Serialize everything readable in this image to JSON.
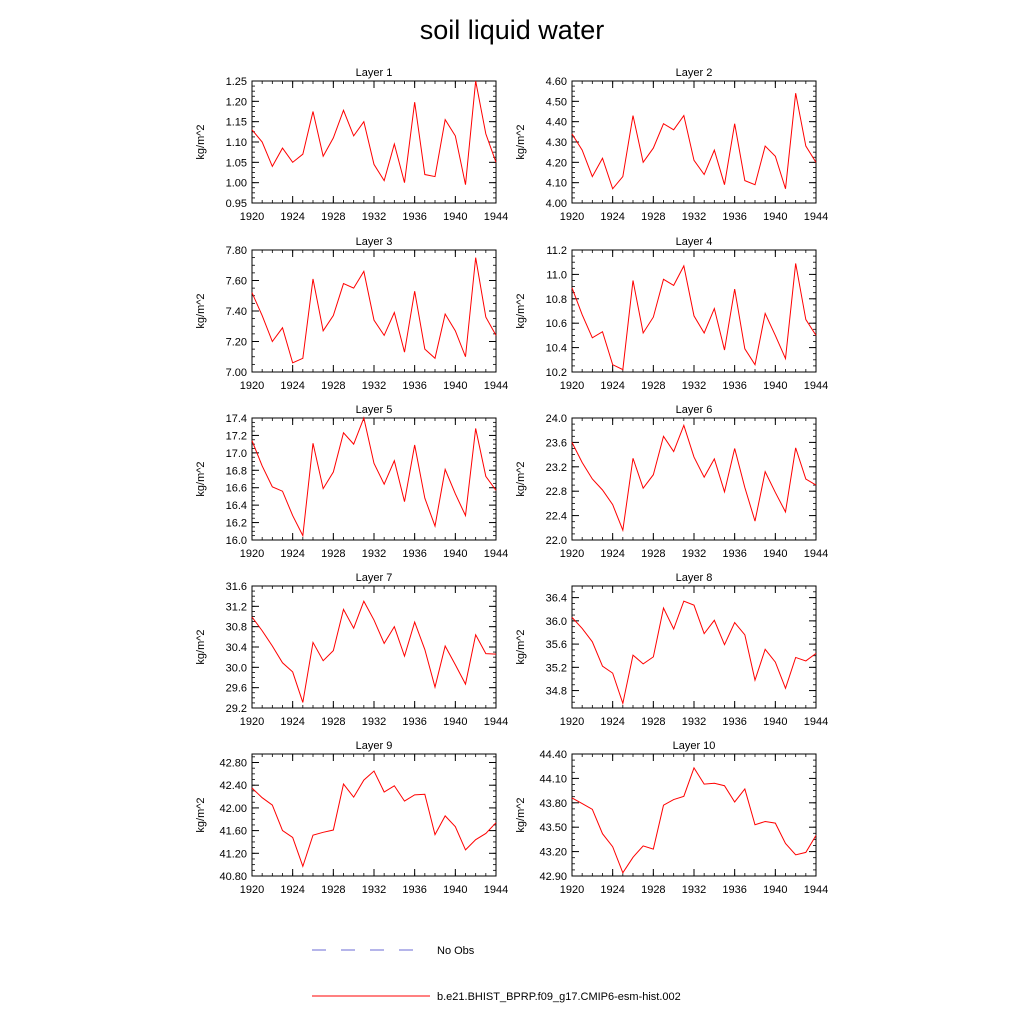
{
  "figure": {
    "title": "soil liquid water"
  },
  "legend": {
    "entries": [
      {
        "label": "No Obs",
        "color": "#6b6bd6",
        "style": "dashed"
      },
      {
        "label": "b.e21.BHIST_BPRP.f09_g17.CMIP6-esm-hist.002",
        "color": "#ff0000",
        "style": "solid"
      }
    ]
  },
  "chart_data": [
    {
      "type": "line",
      "title": "Layer 1",
      "xlabel": "",
      "ylabel": "kg/m^2",
      "xlim": [
        1920,
        1944
      ],
      "ylim": [
        0.95,
        1.25
      ],
      "xticks": [
        "1920",
        "1924",
        "1928",
        "1932",
        "1936",
        "1940",
        "1944"
      ],
      "yticks": [
        "0.95",
        "1.00",
        "1.05",
        "1.10",
        "1.15",
        "1.20",
        "1.25"
      ],
      "series": [
        {
          "name": "b.e21.BHIST_BPRP.f09_g17.CMIP6-esm-hist.002",
          "x": [
            1920,
            1921,
            1922,
            1923,
            1924,
            1925,
            1926,
            1927,
            1928,
            1929,
            1930,
            1931,
            1932,
            1933,
            1934,
            1935,
            1936,
            1937,
            1938,
            1939,
            1940,
            1941,
            1942,
            1943,
            1944
          ],
          "values": [
            1.13,
            1.1,
            1.04,
            1.085,
            1.05,
            1.07,
            1.175,
            1.065,
            1.11,
            1.178,
            1.115,
            1.15,
            1.045,
            1.005,
            1.095,
            1.0,
            1.198,
            1.02,
            1.015,
            1.155,
            1.115,
            0.995,
            1.25,
            1.12,
            1.05
          ]
        }
      ]
    },
    {
      "type": "line",
      "title": "Layer 2",
      "xlabel": "",
      "ylabel": "kg/m^2",
      "xlim": [
        1920,
        1944
      ],
      "ylim": [
        4.0,
        4.6
      ],
      "xticks": [
        "1920",
        "1924",
        "1928",
        "1932",
        "1936",
        "1940",
        "1944"
      ],
      "yticks": [
        "4.00",
        "4.10",
        "4.20",
        "4.30",
        "4.40",
        "4.50",
        "4.60"
      ],
      "series": [
        {
          "name": "b.e21.BHIST_BPRP.f09_g17.CMIP6-esm-hist.002",
          "x": [
            1920,
            1921,
            1922,
            1923,
            1924,
            1925,
            1926,
            1927,
            1928,
            1929,
            1930,
            1931,
            1932,
            1933,
            1934,
            1935,
            1936,
            1937,
            1938,
            1939,
            1940,
            1941,
            1942,
            1943,
            1944
          ],
          "values": [
            4.34,
            4.26,
            4.13,
            4.22,
            4.07,
            4.13,
            4.43,
            4.2,
            4.27,
            4.39,
            4.36,
            4.43,
            4.21,
            4.14,
            4.26,
            4.09,
            4.39,
            4.11,
            4.09,
            4.28,
            4.23,
            4.07,
            4.54,
            4.28,
            4.2
          ]
        }
      ]
    },
    {
      "type": "line",
      "title": "Layer 3",
      "xlabel": "",
      "ylabel": "kg/m^2",
      "xlim": [
        1920,
        1944
      ],
      "ylim": [
        7.0,
        7.8
      ],
      "xticks": [
        "1920",
        "1924",
        "1928",
        "1932",
        "1936",
        "1940",
        "1944"
      ],
      "yticks": [
        "7.00",
        "7.20",
        "7.40",
        "7.60",
        "7.80"
      ],
      "series": [
        {
          "name": "b.e21.BHIST_BPRP.f09_g17.CMIP6-esm-hist.002",
          "x": [
            1920,
            1921,
            1922,
            1923,
            1924,
            1925,
            1926,
            1927,
            1928,
            1929,
            1930,
            1931,
            1932,
            1933,
            1934,
            1935,
            1936,
            1937,
            1938,
            1939,
            1940,
            1941,
            1942,
            1943,
            1944
          ],
          "values": [
            7.52,
            7.37,
            7.2,
            7.29,
            7.06,
            7.09,
            7.61,
            7.27,
            7.37,
            7.58,
            7.55,
            7.66,
            7.34,
            7.24,
            7.39,
            7.13,
            7.53,
            7.15,
            7.09,
            7.38,
            7.27,
            7.1,
            7.75,
            7.36,
            7.24
          ]
        }
      ]
    },
    {
      "type": "line",
      "title": "Layer 4",
      "xlabel": "",
      "ylabel": "kg/m^2",
      "xlim": [
        1920,
        1944
      ],
      "ylim": [
        10.2,
        11.2
      ],
      "xticks": [
        "1920",
        "1924",
        "1928",
        "1932",
        "1936",
        "1940",
        "1944"
      ],
      "yticks": [
        "10.2",
        "10.4",
        "10.6",
        "10.8",
        "11.0",
        "11.2"
      ],
      "series": [
        {
          "name": "b.e21.BHIST_BPRP.f09_g17.CMIP6-esm-hist.002",
          "x": [
            1920,
            1921,
            1922,
            1923,
            1924,
            1925,
            1926,
            1927,
            1928,
            1929,
            1930,
            1931,
            1932,
            1933,
            1934,
            1935,
            1936,
            1937,
            1938,
            1939,
            1940,
            1941,
            1942,
            1943,
            1944
          ],
          "values": [
            10.89,
            10.67,
            10.48,
            10.53,
            10.26,
            10.22,
            10.95,
            10.52,
            10.65,
            10.96,
            10.91,
            11.07,
            10.66,
            10.52,
            10.72,
            10.38,
            10.88,
            10.39,
            10.26,
            10.68,
            10.5,
            10.31,
            11.09,
            10.63,
            10.5
          ]
        }
      ]
    },
    {
      "type": "line",
      "title": "Layer 5",
      "xlabel": "",
      "ylabel": "kg/m^2",
      "xlim": [
        1920,
        1944
      ],
      "ylim": [
        16.0,
        17.4
      ],
      "xticks": [
        "1920",
        "1924",
        "1928",
        "1932",
        "1936",
        "1940",
        "1944"
      ],
      "yticks": [
        "16.0",
        "16.2",
        "16.4",
        "16.6",
        "16.8",
        "17.0",
        "17.2",
        "17.4"
      ],
      "series": [
        {
          "name": "b.e21.BHIST_BPRP.f09_g17.CMIP6-esm-hist.002",
          "x": [
            1920,
            1921,
            1922,
            1923,
            1924,
            1925,
            1926,
            1927,
            1928,
            1929,
            1930,
            1931,
            1932,
            1933,
            1934,
            1935,
            1936,
            1937,
            1938,
            1939,
            1940,
            1941,
            1942,
            1943,
            1944
          ],
          "values": [
            17.14,
            16.85,
            16.61,
            16.56,
            16.28,
            16.05,
            17.11,
            16.59,
            16.78,
            17.23,
            17.1,
            17.4,
            16.88,
            16.64,
            16.91,
            16.44,
            17.09,
            16.48,
            16.16,
            16.81,
            16.53,
            16.28,
            17.28,
            16.73,
            16.57
          ]
        }
      ]
    },
    {
      "type": "line",
      "title": "Layer 6",
      "xlabel": "",
      "ylabel": "kg/m^2",
      "xlim": [
        1920,
        1944
      ],
      "ylim": [
        22.0,
        24.0
      ],
      "xticks": [
        "1920",
        "1924",
        "1928",
        "1932",
        "1936",
        "1940",
        "1944"
      ],
      "yticks": [
        "22.0",
        "22.4",
        "22.8",
        "23.2",
        "23.6",
        "24.0"
      ],
      "series": [
        {
          "name": "b.e21.BHIST_BPRP.f09_g17.CMIP6-esm-hist.002",
          "x": [
            1920,
            1921,
            1922,
            1923,
            1924,
            1925,
            1926,
            1927,
            1928,
            1929,
            1930,
            1931,
            1932,
            1933,
            1934,
            1935,
            1936,
            1937,
            1938,
            1939,
            1940,
            1941,
            1942,
            1943,
            1944
          ],
          "values": [
            23.6,
            23.27,
            23.0,
            22.82,
            22.58,
            22.16,
            23.34,
            22.85,
            23.07,
            23.7,
            23.45,
            23.88,
            23.36,
            23.03,
            23.33,
            22.79,
            23.5,
            22.86,
            22.31,
            23.12,
            22.78,
            22.46,
            23.51,
            23.0,
            22.9
          ]
        }
      ]
    },
    {
      "type": "line",
      "title": "Layer 7",
      "xlabel": "",
      "ylabel": "kg/m^2",
      "xlim": [
        1920,
        1944
      ],
      "ylim": [
        29.2,
        31.6
      ],
      "xticks": [
        "1920",
        "1924",
        "1928",
        "1932",
        "1936",
        "1940",
        "1944"
      ],
      "yticks": [
        "29.2",
        "29.6",
        "30.0",
        "30.4",
        "30.8",
        "31.2",
        "31.6"
      ],
      "series": [
        {
          "name": "b.e21.BHIST_BPRP.f09_g17.CMIP6-esm-hist.002",
          "x": [
            1920,
            1921,
            1922,
            1923,
            1924,
            1925,
            1926,
            1927,
            1928,
            1929,
            1930,
            1931,
            1932,
            1933,
            1934,
            1935,
            1936,
            1937,
            1938,
            1939,
            1940,
            1941,
            1942,
            1943,
            1944
          ],
          "values": [
            30.99,
            30.72,
            30.42,
            30.09,
            29.91,
            29.31,
            30.49,
            30.13,
            30.33,
            31.14,
            30.77,
            31.3,
            30.93,
            30.47,
            30.8,
            30.22,
            30.89,
            30.35,
            29.61,
            30.42,
            30.05,
            29.67,
            30.64,
            30.27,
            30.26
          ]
        }
      ]
    },
    {
      "type": "line",
      "title": "Layer 8",
      "xlabel": "",
      "ylabel": "kg/m^2",
      "xlim": [
        1920,
        1944
      ],
      "ylim": [
        34.5,
        36.6
      ],
      "xticks": [
        "1920",
        "1924",
        "1928",
        "1932",
        "1936",
        "1940",
        "1944"
      ],
      "yticks": [
        "34.8",
        "35.2",
        "35.6",
        "36.0",
        "36.4"
      ],
      "series": [
        {
          "name": "b.e21.BHIST_BPRP.f09_g17.CMIP6-esm-hist.002",
          "x": [
            1920,
            1921,
            1922,
            1923,
            1924,
            1925,
            1926,
            1927,
            1928,
            1929,
            1930,
            1931,
            1932,
            1933,
            1934,
            1935,
            1936,
            1937,
            1938,
            1939,
            1940,
            1941,
            1942,
            1943,
            1944
          ],
          "values": [
            36.06,
            35.87,
            35.64,
            35.22,
            35.1,
            34.58,
            35.41,
            35.26,
            35.38,
            36.22,
            35.86,
            36.34,
            36.27,
            35.78,
            36.01,
            35.59,
            35.97,
            35.76,
            34.98,
            35.51,
            35.29,
            34.84,
            35.37,
            35.31,
            35.44
          ]
        }
      ]
    },
    {
      "type": "line",
      "title": "Layer 9",
      "xlabel": "",
      "ylabel": "kg/m^2",
      "xlim": [
        1920,
        1944
      ],
      "ylim": [
        40.8,
        42.95
      ],
      "xticks": [
        "1920",
        "1924",
        "1928",
        "1932",
        "1936",
        "1940",
        "1944"
      ],
      "yticks": [
        "40.80",
        "41.20",
        "41.60",
        "42.00",
        "42.40",
        "42.80"
      ],
      "series": [
        {
          "name": "b.e21.BHIST_BPRP.f09_g17.CMIP6-esm-hist.002",
          "x": [
            1920,
            1921,
            1922,
            1923,
            1924,
            1925,
            1926,
            1927,
            1928,
            1929,
            1930,
            1931,
            1932,
            1933,
            1934,
            1935,
            1936,
            1937,
            1938,
            1939,
            1940,
            1941,
            1942,
            1943,
            1944
          ],
          "values": [
            42.35,
            42.18,
            42.05,
            41.6,
            41.48,
            40.97,
            41.52,
            41.57,
            41.61,
            42.42,
            42.19,
            42.49,
            42.65,
            42.28,
            42.39,
            42.12,
            42.23,
            42.24,
            41.53,
            41.86,
            41.67,
            41.26,
            41.44,
            41.55,
            41.74
          ]
        }
      ]
    },
    {
      "type": "line",
      "title": "Layer 10",
      "xlabel": "",
      "ylabel": "kg/m^2",
      "xlim": [
        1920,
        1944
      ],
      "ylim": [
        42.9,
        44.4
      ],
      "xticks": [
        "1920",
        "1924",
        "1928",
        "1932",
        "1936",
        "1940",
        "1944"
      ],
      "yticks": [
        "42.90",
        "43.20",
        "43.50",
        "43.80",
        "44.10",
        "44.40"
      ],
      "series": [
        {
          "name": "b.e21.BHIST_BPRP.f09_g17.CMIP6-esm-hist.002",
          "x": [
            1920,
            1921,
            1922,
            1923,
            1924,
            1925,
            1926,
            1927,
            1928,
            1929,
            1930,
            1931,
            1932,
            1933,
            1934,
            1935,
            1936,
            1937,
            1938,
            1939,
            1940,
            1941,
            1942,
            1943,
            1944
          ],
          "values": [
            43.86,
            43.79,
            43.72,
            43.42,
            43.26,
            42.94,
            43.13,
            43.27,
            43.23,
            43.77,
            43.84,
            43.88,
            44.23,
            44.03,
            44.04,
            44.01,
            43.81,
            43.97,
            43.53,
            43.57,
            43.55,
            43.3,
            43.16,
            43.19,
            43.4
          ]
        }
      ]
    }
  ]
}
